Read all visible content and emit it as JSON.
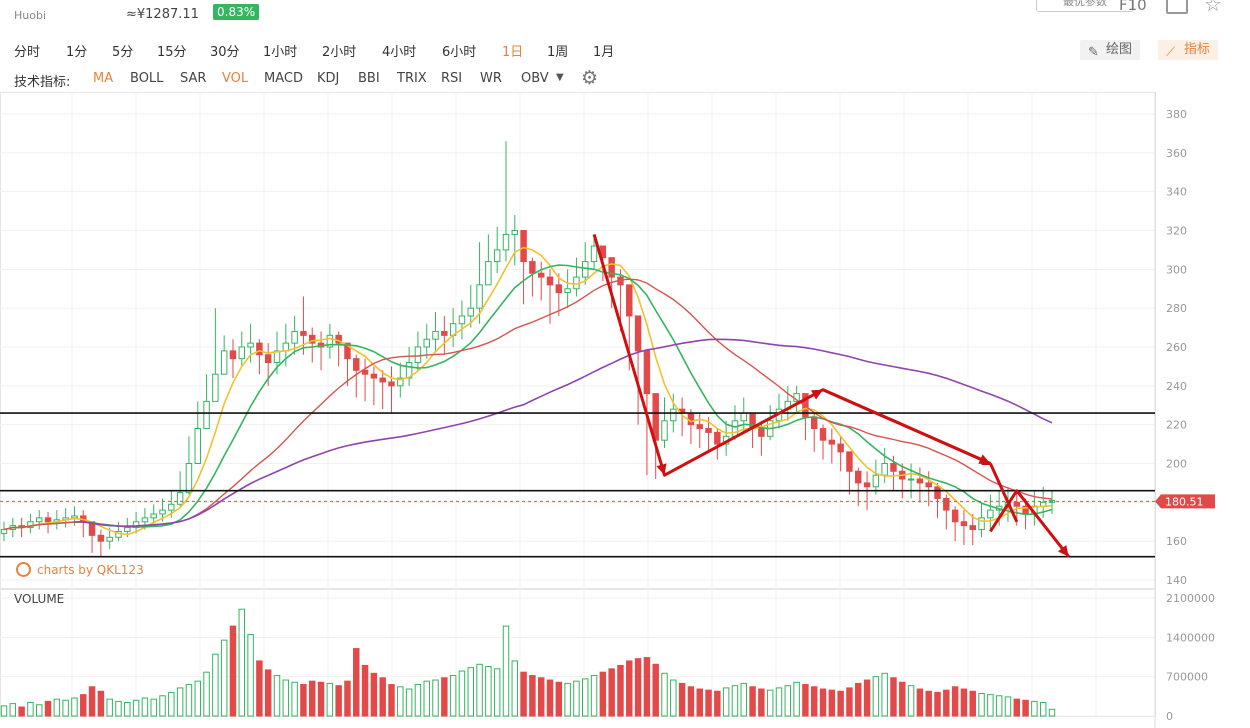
{
  "header": {
    "exchange": "Huobi",
    "cny_price": "≈¥1287.11",
    "change_pct": "0.83%",
    "top_right_button": "最优参数",
    "f10_label": "F10"
  },
  "timeframes": [
    {
      "label": "分时",
      "active": false
    },
    {
      "label": "1分",
      "active": false
    },
    {
      "label": "5分",
      "active": false
    },
    {
      "label": "15分",
      "active": false
    },
    {
      "label": "30分",
      "active": false
    },
    {
      "label": "1小时",
      "active": false
    },
    {
      "label": "2小时",
      "active": false
    },
    {
      "label": "4小时",
      "active": false
    },
    {
      "label": "6小时",
      "active": false
    },
    {
      "label": "1日",
      "active": true
    },
    {
      "label": "1周",
      "active": false
    },
    {
      "label": "1月",
      "active": false
    }
  ],
  "tools": {
    "draw_label": "绘图",
    "indicator_label": "指标"
  },
  "indicators": {
    "label": "技术指标:",
    "items": [
      {
        "label": "MA",
        "active": true
      },
      {
        "label": "BOLL",
        "active": false
      },
      {
        "label": "SAR",
        "active": false
      },
      {
        "label": "VOL",
        "active": true
      },
      {
        "label": "MACD",
        "active": false
      },
      {
        "label": "KDJ",
        "active": false
      },
      {
        "label": "BBI",
        "active": false
      },
      {
        "label": "TRIX",
        "active": false
      },
      {
        "label": "RSI",
        "active": false
      },
      {
        "label": "WR",
        "active": false
      },
      {
        "label": "OBV",
        "active": false
      }
    ]
  },
  "watermark": "charts by QKL123",
  "volume_label": "VOLUME",
  "colors": {
    "up": "#35b560",
    "down": "#e24a4a",
    "ma1": "#f2c12e",
    "ma2": "#35b560",
    "ma3": "#d9534f",
    "ma4": "#8e44ad",
    "accent": "#e8823c",
    "annotation": "#d01010"
  },
  "chart_data": {
    "type": "candlestick",
    "price_axis": {
      "min": 140,
      "max": 380,
      "ticks": [
        380,
        360,
        340,
        320,
        300,
        280,
        260,
        240,
        220,
        200,
        180,
        160,
        140
      ]
    },
    "volume_axis": {
      "min": 0,
      "max": 2100000,
      "ticks": [
        "2100000",
        "1400000",
        "700000",
        "0"
      ],
      "tick_values": [
        2100000,
        1400000,
        700000,
        0
      ]
    },
    "last_price": 180.51,
    "last_price_label": "180.51",
    "close": [
      166,
      168,
      167,
      170,
      172,
      170,
      171,
      172,
      173,
      170,
      163,
      160,
      162,
      165,
      167,
      170,
      172,
      174,
      176,
      179,
      185,
      200,
      218,
      232,
      246,
      258,
      254,
      260,
      262,
      256,
      252,
      258,
      262,
      268,
      266,
      262,
      260,
      266,
      262,
      254,
      248,
      246,
      244,
      242,
      240,
      244,
      252,
      260,
      264,
      268,
      266,
      272,
      276,
      280,
      292,
      304,
      310,
      318,
      320,
      304,
      298,
      296,
      292,
      288,
      290,
      296,
      304,
      312,
      306,
      296,
      292,
      276,
      258,
      236,
      212,
      222,
      228,
      226,
      220,
      218,
      216,
      210,
      214,
      222,
      226,
      218,
      214,
      222,
      228,
      232,
      236,
      224,
      218,
      212,
      210,
      206,
      196,
      190,
      188,
      194,
      200,
      196,
      192,
      192,
      190,
      188,
      182,
      176,
      170,
      168,
      166,
      172,
      176,
      178,
      180,
      178,
      174,
      178,
      180,
      181
    ],
    "high": [
      170,
      172,
      172,
      174,
      176,
      175,
      176,
      177,
      178,
      176,
      168,
      166,
      167,
      170,
      172,
      175,
      177,
      179,
      182,
      186,
      196,
      214,
      232,
      246,
      280,
      266,
      264,
      268,
      272,
      264,
      262,
      268,
      272,
      276,
      286,
      270,
      268,
      272,
      268,
      262,
      256,
      254,
      250,
      248,
      250,
      252,
      260,
      268,
      272,
      278,
      276,
      280,
      284,
      292,
      314,
      318,
      322,
      366,
      328,
      312,
      306,
      304,
      300,
      298,
      300,
      306,
      314,
      318,
      312,
      304,
      300,
      286,
      270,
      248,
      226,
      234,
      236,
      234,
      228,
      226,
      224,
      218,
      222,
      230,
      234,
      226,
      222,
      230,
      236,
      240,
      240,
      230,
      226,
      220,
      218,
      214,
      204,
      198,
      196,
      202,
      208,
      204,
      200,
      200,
      198,
      196,
      190,
      184,
      178,
      176,
      174,
      180,
      184,
      186,
      188,
      186,
      182,
      186,
      188,
      186
    ],
    "low": [
      160,
      162,
      162,
      164,
      166,
      164,
      166,
      167,
      168,
      162,
      154,
      152,
      156,
      160,
      162,
      164,
      166,
      168,
      170,
      172,
      178,
      184,
      200,
      222,
      236,
      246,
      244,
      250,
      252,
      246,
      240,
      246,
      250,
      256,
      256,
      252,
      248,
      254,
      250,
      240,
      234,
      232,
      230,
      228,
      226,
      234,
      240,
      248,
      254,
      258,
      256,
      260,
      264,
      270,
      272,
      294,
      298,
      304,
      302,
      282,
      286,
      284,
      272,
      276,
      280,
      286,
      292,
      300,
      294,
      280,
      268,
      248,
      220,
      194,
      192,
      208,
      216,
      214,
      210,
      208,
      206,
      202,
      204,
      212,
      216,
      208,
      204,
      212,
      218,
      222,
      226,
      212,
      206,
      202,
      200,
      196,
      184,
      178,
      176,
      184,
      190,
      186,
      182,
      182,
      180,
      178,
      172,
      166,
      160,
      158,
      158,
      162,
      166,
      168,
      170,
      168,
      166,
      168,
      172,
      174
    ],
    "volume": [
      180000,
      220000,
      160000,
      240000,
      200000,
      260000,
      300000,
      280000,
      320000,
      380000,
      520000,
      440000,
      300000,
      260000,
      240000,
      280000,
      320000,
      300000,
      360000,
      420000,
      500000,
      560000,
      620000,
      780000,
      1100000,
      1350000,
      1600000,
      1900000,
      1450000,
      980000,
      820000,
      720000,
      640000,
      600000,
      560000,
      620000,
      600000,
      580000,
      540000,
      620000,
      1200000,
      900000,
      760000,
      680000,
      560000,
      520000,
      480000,
      560000,
      620000,
      640000,
      680000,
      720000,
      800000,
      860000,
      920000,
      880000,
      840000,
      1600000,
      980000,
      780000,
      720000,
      680000,
      640000,
      600000,
      580000,
      620000,
      660000,
      720000,
      780000,
      840000,
      900000,
      980000,
      1020000,
      1040000,
      920000,
      760000,
      640000,
      580000,
      520000,
      480000,
      460000,
      440000,
      500000,
      540000,
      580000,
      520000,
      480000,
      460000,
      500000,
      540000,
      600000,
      560000,
      520000,
      480000,
      460000,
      440000,
      500000,
      580000,
      640000,
      700000,
      760000,
      680000,
      600000,
      540000,
      480000,
      440000,
      420000,
      460000,
      520000,
      480000,
      440000,
      400000,
      380000,
      360000,
      340000,
      300000,
      280000,
      260000,
      240000,
      120000
    ]
  }
}
